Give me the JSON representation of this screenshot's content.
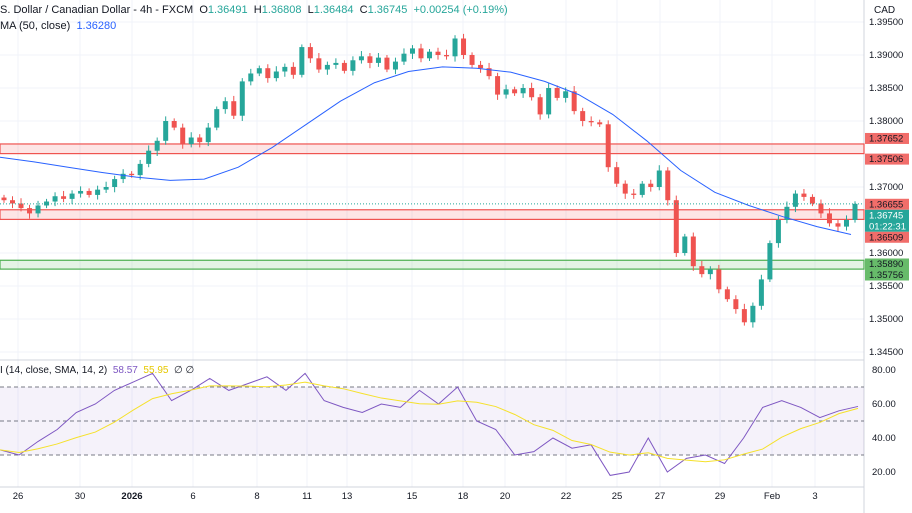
{
  "header": {
    "symbol": "S. Dollar / Canadian Dollar - 4h - FXCM",
    "o_label": "O",
    "o": "1.36491",
    "h_label": "H",
    "h": "1.36808",
    "l_label": "L",
    "l": "1.36484",
    "c_label": "C",
    "c": "1.36745",
    "change": "+0.00254 (+0.19%)",
    "ma_label": "MA (50, close)",
    "ma_value": "1.36280",
    "currency": "CAD"
  },
  "rsi_header": {
    "label": "I (14, close, SMA, 14, 2)",
    "rsi": "58.57",
    "signal": "55.95",
    "extra1": "∅",
    "extra2": "∅"
  },
  "colors": {
    "up": "#26a69a",
    "down": "#ef5350",
    "ma": "#2962ff",
    "rsi": "#7e57c2",
    "signal": "#f5e12b",
    "res_zone": "#ef5350",
    "sup_zone": "#4caf50"
  },
  "chart_data": {
    "type": "candlestick",
    "price_ticks": [
      "1.39500",
      "1.39000",
      "1.38500",
      "1.38000",
      "1.37000",
      "1.36000",
      "1.35500",
      "1.35000",
      "1.34500"
    ],
    "price_tick_values": [
      1.395,
      1.39,
      1.385,
      1.38,
      1.37,
      1.36,
      1.355,
      1.35,
      1.345
    ],
    "x_labels": [
      "26",
      "30",
      "2026",
      "6",
      "8",
      "11",
      "13",
      "15",
      "18",
      "20",
      "22",
      "25",
      "27",
      "29",
      "Feb",
      "3"
    ],
    "closes": [
      1.368,
      1.3675,
      1.3668,
      1.366,
      1.3672,
      1.3678,
      1.3686,
      1.3682,
      1.369,
      1.3694,
      1.3688,
      1.3696,
      1.37,
      1.3712,
      1.372,
      1.3718,
      1.3735,
      1.3755,
      1.377,
      1.38,
      1.379,
      1.3765,
      1.3775,
      1.3768,
      1.379,
      1.3818,
      1.383,
      1.3808,
      1.386,
      1.3872,
      1.388,
      1.3865,
      1.3875,
      1.3882,
      1.387,
      1.3912,
      1.3895,
      1.3878,
      1.3885,
      1.3888,
      1.3876,
      1.3892,
      1.3898,
      1.3888,
      1.3896,
      1.3878,
      1.389,
      1.3902,
      1.391,
      1.3895,
      1.3905,
      1.39,
      1.3898,
      1.3925,
      1.39,
      1.3885,
      1.388,
      1.3868,
      1.384,
      1.3848,
      1.3842,
      1.385,
      1.3836,
      1.381,
      1.385,
      1.3835,
      1.3845,
      1.3815,
      1.38,
      1.3798,
      1.3795,
      1.373,
      1.3705,
      1.369,
      1.3688,
      1.3705,
      1.37,
      1.3725,
      1.368,
      1.36,
      1.3625,
      1.358,
      1.3568,
      1.3575,
      1.3545,
      1.353,
      1.3515,
      1.3495,
      1.352,
      1.356,
      1.3615,
      1.365,
      1.367,
      1.369,
      1.3685,
      1.3675,
      1.366,
      1.3645,
      1.364,
      1.365,
      1.36745
    ],
    "ma50": [
      1.3745,
      1.3738,
      1.373,
      1.3722,
      1.3715,
      1.371,
      1.3712,
      1.373,
      1.376,
      1.3795,
      1.383,
      1.3858,
      1.3875,
      1.3882,
      1.388,
      1.3874,
      1.386,
      1.384,
      1.381,
      1.377,
      1.3725,
      1.3692,
      1.3672,
      1.3655,
      1.364,
      1.3628
    ],
    "rsi": [
      33,
      30,
      38,
      45,
      55,
      60,
      68,
      73,
      78,
      62,
      68,
      75,
      68,
      72,
      76,
      68,
      78,
      62,
      58,
      55,
      60,
      58,
      68,
      60,
      70,
      50,
      45,
      30,
      32,
      40,
      34,
      36,
      18,
      20,
      40,
      20,
      28,
      30,
      25,
      40,
      58,
      62,
      58,
      52,
      56,
      58.57
    ],
    "rsi_levels": [
      "80.00",
      "60.00",
      "40.00",
      "20.00"
    ],
    "rsi_bands": [
      70,
      50,
      30
    ],
    "zones": [
      {
        "type": "resistance",
        "top": "1.37652",
        "bottom": "1.37506"
      },
      {
        "type": "resistance",
        "top": "1.36655",
        "bottom": "1.36509"
      },
      {
        "type": "support",
        "top": "1.35890",
        "bottom": "1.35756"
      }
    ],
    "last_price": "1.36745",
    "countdown": "01:22:31"
  }
}
